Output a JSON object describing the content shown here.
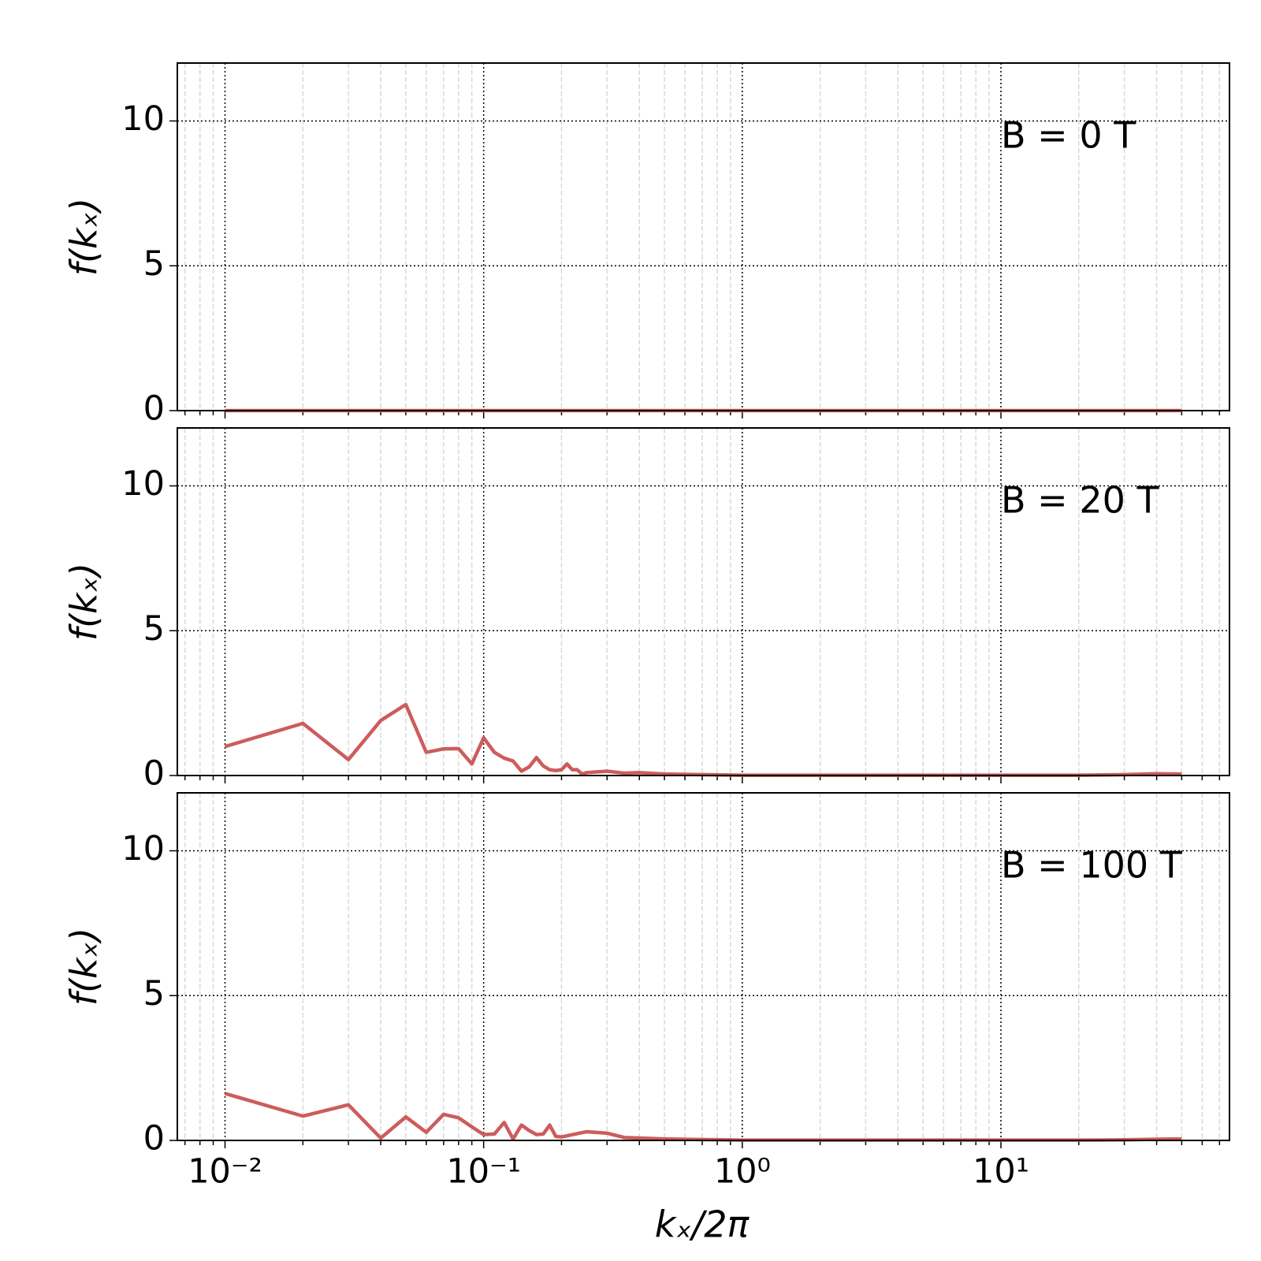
{
  "chart_data": [
    {
      "type": "line",
      "annotation": "B = 0 T",
      "ylabel": "f(kₓ)",
      "color": "#cd5c5c",
      "log_x": true,
      "grid": true,
      "x": [
        0.01,
        0.02,
        0.03,
        0.04,
        0.05,
        0.06,
        0.07,
        0.08,
        0.09,
        0.1,
        0.2,
        0.5,
        1,
        2,
        5,
        10,
        20,
        50
      ],
      "values": [
        0,
        0,
        0,
        0,
        0,
        0,
        0,
        0,
        0,
        0,
        0,
        0,
        0,
        0,
        0,
        0,
        0,
        0
      ],
      "xlim": [
        0.00654,
        76.5
      ],
      "ylim": [
        0,
        12
      ],
      "xticks": [
        0.01,
        0.1,
        1,
        10
      ],
      "xminorticks": [
        0.007,
        0.008,
        0.009,
        0.02,
        0.03,
        0.04,
        0.05,
        0.06,
        0.07,
        0.08,
        0.09,
        0.2,
        0.3,
        0.4,
        0.5,
        0.6,
        0.7,
        0.8,
        0.9,
        2,
        3,
        4,
        5,
        6,
        7,
        8,
        9,
        20,
        30,
        40,
        50,
        60,
        70
      ],
      "yticks": [
        0,
        5,
        10
      ]
    },
    {
      "type": "line",
      "annotation": "B = 20 T",
      "ylabel": "f(kₓ)",
      "color": "#cd5c5c",
      "log_x": true,
      "grid": true,
      "x": [
        0.01,
        0.02,
        0.03,
        0.04,
        0.05,
        0.06,
        0.07,
        0.08,
        0.09,
        0.1,
        0.11,
        0.12,
        0.13,
        0.14,
        0.15,
        0.16,
        0.17,
        0.18,
        0.19,
        0.2,
        0.21,
        0.22,
        0.23,
        0.24,
        0.25,
        0.3,
        0.35,
        0.4,
        0.5,
        0.7,
        1,
        2,
        5,
        10,
        20,
        30,
        40,
        50
      ],
      "values": [
        1.0,
        1.8,
        0.55,
        1.9,
        2.45,
        0.8,
        0.92,
        0.93,
        0.4,
        1.3,
        0.8,
        0.6,
        0.5,
        0.15,
        0.3,
        0.62,
        0.33,
        0.2,
        0.17,
        0.2,
        0.4,
        0.2,
        0.2,
        0.05,
        0.1,
        0.15,
        0.08,
        0.1,
        0.05,
        0.03,
        0.01,
        0.01,
        0.01,
        0.01,
        0.01,
        0.03,
        0.06,
        0.05
      ],
      "xlim": [
        0.00654,
        76.5
      ],
      "ylim": [
        0,
        12
      ],
      "xticks": [
        0.01,
        0.1,
        1,
        10
      ],
      "xminorticks": [
        0.007,
        0.008,
        0.009,
        0.02,
        0.03,
        0.04,
        0.05,
        0.06,
        0.07,
        0.08,
        0.09,
        0.2,
        0.3,
        0.4,
        0.5,
        0.6,
        0.7,
        0.8,
        0.9,
        2,
        3,
        4,
        5,
        6,
        7,
        8,
        9,
        20,
        30,
        40,
        50,
        60,
        70
      ],
      "yticks": [
        0,
        5,
        10
      ]
    },
    {
      "type": "line",
      "annotation": "B = 100 T",
      "ylabel": "f(kₓ)",
      "xlabel": "kₓ/2π",
      "color": "#cd5c5c",
      "log_x": true,
      "grid": true,
      "x": [
        0.01,
        0.02,
        0.03,
        0.04,
        0.05,
        0.06,
        0.07,
        0.08,
        0.09,
        0.1,
        0.11,
        0.12,
        0.13,
        0.14,
        0.15,
        0.16,
        0.17,
        0.18,
        0.19,
        0.2,
        0.25,
        0.3,
        0.35,
        0.4,
        0.5,
        0.7,
        1,
        2,
        5,
        10,
        20,
        30,
        40,
        50
      ],
      "values": [
        1.62,
        0.84,
        1.23,
        0.08,
        0.81,
        0.28,
        0.9,
        0.78,
        0.47,
        0.2,
        0.22,
        0.62,
        0.05,
        0.53,
        0.34,
        0.2,
        0.22,
        0.53,
        0.14,
        0.12,
        0.3,
        0.25,
        0.1,
        0.08,
        0.05,
        0.03,
        0.01,
        0.01,
        0.01,
        0.01,
        0.01,
        0.02,
        0.04,
        0.05
      ],
      "xlim": [
        0.00654,
        76.5
      ],
      "ylim": [
        0,
        12
      ],
      "xticks": [
        {
          "value": 0.01,
          "label": "10⁻²"
        },
        {
          "value": 0.1,
          "label": "10⁻¹"
        },
        {
          "value": 1,
          "label": "10⁰"
        },
        {
          "value": 10,
          "label": "10¹"
        }
      ],
      "xminorticks": [
        0.007,
        0.008,
        0.009,
        0.02,
        0.03,
        0.04,
        0.05,
        0.06,
        0.07,
        0.08,
        0.09,
        0.2,
        0.3,
        0.4,
        0.5,
        0.6,
        0.7,
        0.8,
        0.9,
        2,
        3,
        4,
        5,
        6,
        7,
        8,
        9,
        20,
        30,
        40,
        50,
        60,
        70
      ],
      "yticks": [
        0,
        5,
        10
      ]
    }
  ]
}
